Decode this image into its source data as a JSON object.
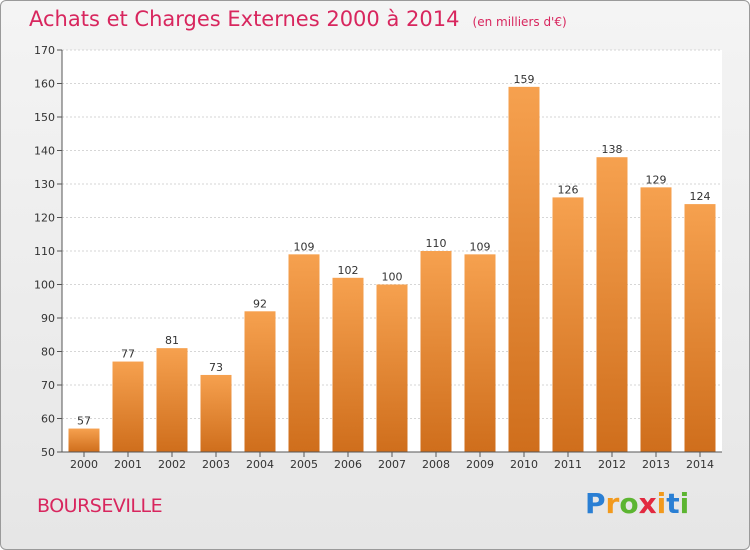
{
  "header": {
    "title": "Achats et Charges Externes 2000 à 2014",
    "subtitle": "(en milliers d'€)"
  },
  "footer": {
    "commune": "BOURSEVILLE",
    "logo_letters": [
      "P",
      "r",
      "o",
      "x",
      "i",
      "t",
      "i"
    ]
  },
  "colors": {
    "bar_top": "#f6a14f",
    "bar_bottom": "#cf6e1c",
    "title": "#d8265e"
  },
  "chart_data": {
    "type": "bar",
    "categories": [
      "2000",
      "2001",
      "2002",
      "2003",
      "2004",
      "2005",
      "2006",
      "2007",
      "2008",
      "2009",
      "2010",
      "2011",
      "2012",
      "2013",
      "2014"
    ],
    "values": [
      57,
      77,
      81,
      73,
      92,
      109,
      102,
      100,
      110,
      109,
      159,
      126,
      138,
      129,
      124
    ],
    "title": "Achats et Charges Externes 2000 à 2014",
    "subtitle": "(en milliers d'€)",
    "ylim": [
      50,
      170
    ],
    "yticks": [
      50,
      60,
      70,
      80,
      90,
      100,
      110,
      120,
      130,
      140,
      150,
      160,
      170
    ],
    "grid": true,
    "data_labels": true
  }
}
